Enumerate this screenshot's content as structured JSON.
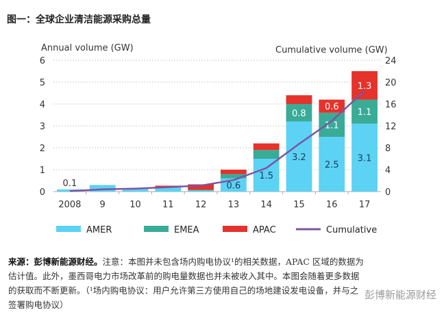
{
  "title": "图一：全球企业清洁能源采购总量",
  "chart_data": {
    "type": "bar",
    "stacked": true,
    "categories": [
      "2008",
      "9",
      "10",
      "11",
      "12",
      "13",
      "14",
      "15",
      "16",
      "17"
    ],
    "ylabel": "Annual volume (GW)",
    "y2label": "Cumulative volume (GW)",
    "ylim": [
      0,
      6
    ],
    "yticks": [
      0,
      1,
      2,
      3,
      4,
      5,
      6
    ],
    "y2lim": [
      0,
      24
    ],
    "y2ticks": [
      0,
      4,
      8,
      12,
      16,
      20,
      24
    ],
    "grid": true,
    "legend": "bottom",
    "series": [
      {
        "name": "AMER",
        "color": "#5cd2f4",
        "values": [
          0.1,
          0.3,
          0.15,
          0.2,
          0.05,
          0.6,
          1.5,
          3.2,
          2.5,
          3.1
        ],
        "labels": [
          "0.1",
          "",
          "",
          "",
          "",
          "0.6",
          "1.5",
          "3.2",
          "2.5",
          "3.1"
        ]
      },
      {
        "name": "EMEA",
        "color": "#39ab97",
        "values": [
          0,
          0,
          0,
          0,
          0.03,
          0.2,
          0.4,
          0.8,
          1.1,
          1.1
        ],
        "labels": [
          "",
          "",
          "",
          "",
          "",
          "",
          "",
          "0.8",
          "1.1",
          "1.1"
        ]
      },
      {
        "name": "APAC",
        "color": "#e5322b",
        "values": [
          0,
          0,
          0,
          0.07,
          0.25,
          0.2,
          0.3,
          0.4,
          0.6,
          1.3
        ],
        "labels": [
          "",
          "",
          "",
          "",
          "",
          "",
          "",
          "",
          "0.6",
          "1.3"
        ]
      }
    ],
    "line": {
      "name": "Cumulative",
      "color": "#7b55a3",
      "axis": "right",
      "values": [
        0.1,
        0.4,
        0.55,
        0.8,
        1.1,
        2.1,
        4.3,
        8.7,
        12.9,
        18.4
      ]
    }
  },
  "note": {
    "source_bold": "来源：彭博新能源财经。",
    "text": "注意：本图并未包含场内购电协议¹的相关数据，APAC 区域的数据为估计值。此外，墨西哥电力市场改革前的购电量数据也并未被收入其中。本图会随着更多数据的获取而不断更新。（¹场内购电协议：用户允许第三方使用自己的场地建设发电设备，并与之签署购电协议）"
  },
  "watermark": "彭博新能源财经"
}
